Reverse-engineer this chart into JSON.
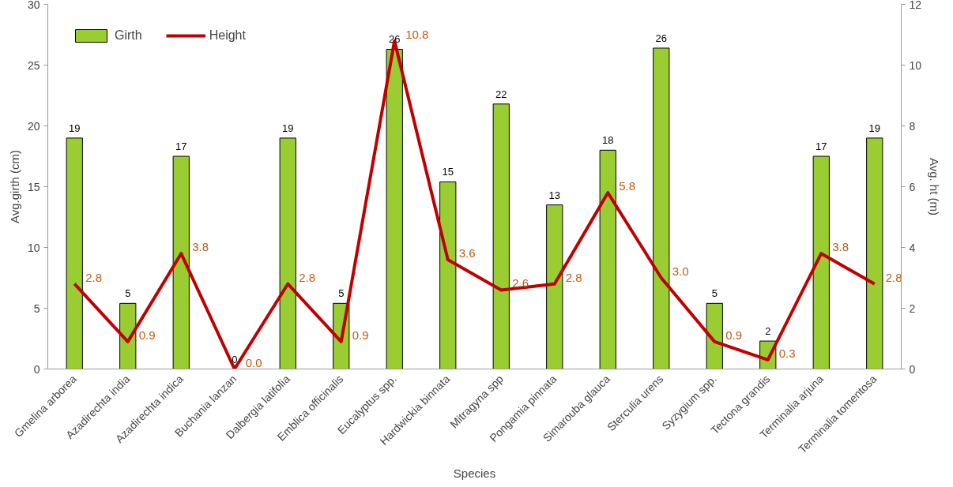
{
  "chart_data": {
    "type": "bar",
    "xlabel": "Species",
    "ylabel": "Avg.girth (cm)",
    "y2label": "Avg. ht (m)",
    "categories": [
      "Gmelina arborea",
      "Azadirechta india",
      "Azadirechta indica",
      "Buchania lanzan",
      "Dalbergia latifolia",
      "Emblica officinalis",
      "Eucalyptus spp.",
      "Hardwickia binnata",
      "Mitragyna spp",
      "Pongamia pinnata",
      "Simarouba glauca",
      "Sterculia urens",
      "Syzygium spp.",
      "Tectona grandis",
      "Terminalia arjuna",
      "Terminalia tomentosa"
    ],
    "series": [
      {
        "name": "Girth",
        "color": "#9acd32",
        "values": [
          19.0,
          5.4,
          17.5,
          0,
          19.0,
          5.4,
          26.3,
          15.4,
          21.8,
          13.5,
          18.0,
          26.4,
          5.4,
          2.3,
          17.5,
          19.0
        ],
        "value_labels": [
          "19",
          "5",
          "17",
          "0",
          "19",
          "5",
          "26",
          "15",
          "22",
          "13",
          "18",
          "26",
          "5",
          "2",
          "17",
          "19"
        ]
      },
      {
        "name": "Height",
        "type": "line",
        "axis": "y2",
        "color": "#c00000",
        "values": [
          2.8,
          0.9,
          3.8,
          0.0,
          2.8,
          0.9,
          10.8,
          3.6,
          2.6,
          2.8,
          5.8,
          3.0,
          0.9,
          0.3,
          3.8,
          2.8
        ],
        "value_labels": [
          "2.8",
          "0.9",
          "3.8",
          "0.0",
          "2.8",
          "0.9",
          "10.8",
          "3.6",
          "2.6",
          "2.8",
          "5.8",
          "3.0",
          "0.9",
          "0.3",
          "3.8",
          "2.8"
        ]
      }
    ],
    "ylim": [
      0,
      30
    ],
    "yticks": [
      0,
      5,
      10,
      15,
      20,
      25,
      30
    ],
    "y2lim": [
      0,
      12
    ],
    "y2ticks": [
      0,
      2,
      4,
      6,
      8,
      10,
      12
    ],
    "legend": "top left",
    "grid": false
  }
}
